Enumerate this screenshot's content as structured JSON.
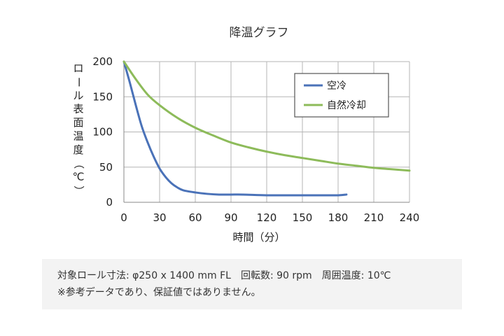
{
  "chart_data": {
    "type": "line",
    "title": "降温グラフ",
    "xlabel": "時間（分）",
    "ylabel": "ロール表面温度（℃）",
    "xlim": [
      0,
      240
    ],
    "ylim": [
      0,
      200
    ],
    "xticks": [
      0,
      30,
      60,
      90,
      120,
      150,
      180,
      210,
      240
    ],
    "yticks": [
      0,
      50,
      100,
      150,
      200
    ],
    "grid": true,
    "legend_position": "top-right",
    "series": [
      {
        "name": "空冷",
        "color": "#4a72b8",
        "x": [
          0,
          5,
          10,
          15,
          20,
          25,
          30,
          35,
          40,
          45,
          50,
          60,
          70,
          80,
          90,
          100,
          120,
          140,
          160,
          180,
          187
        ],
        "y": [
          200,
          170,
          138,
          108,
          85,
          65,
          48,
          36,
          27,
          21,
          17,
          14,
          12,
          11,
          11,
          11,
          10,
          10,
          10,
          10,
          11
        ]
      },
      {
        "name": "自然冷却",
        "color": "#8dbb5a",
        "x": [
          0,
          10,
          20,
          30,
          45,
          60,
          75,
          90,
          105,
          120,
          135,
          150,
          165,
          180,
          195,
          210,
          225,
          240
        ],
        "y": [
          200,
          175,
          153,
          138,
          120,
          106,
          95,
          85,
          78,
          72,
          67,
          63,
          59,
          55,
          52,
          49,
          47,
          45
        ]
      }
    ]
  },
  "notes": {
    "line1": "対象ロール寸法: φ250 x 1400 mm FL　回転数: 90 rpm　周囲温度: 10℃",
    "line2": "※参考データであり、保証値ではありません。"
  }
}
